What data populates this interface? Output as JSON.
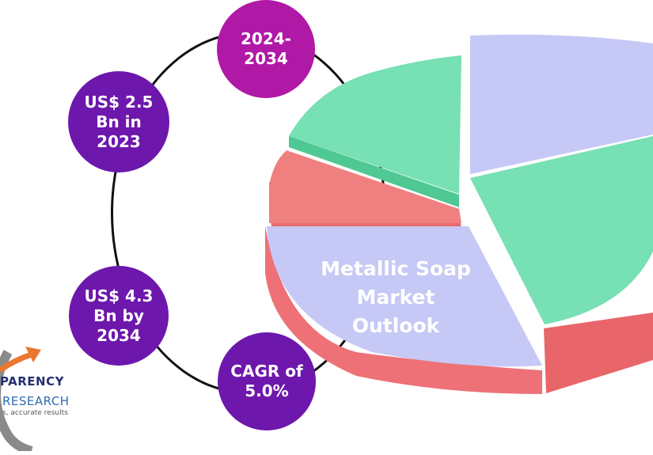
{
  "colors": {
    "period_bubble": "#b018a6",
    "value_bubble": "#6d17ac",
    "ring": "#111111",
    "slice_lavender": "#c6c8f6",
    "slice_green": "#77e0b4",
    "slice_red": "#f07f80",
    "logo_navy": "#24306e",
    "logo_blue": "#2e6bb2",
    "logo_orange": "#e9782e"
  },
  "bubbles": {
    "period": "2024-\n2034",
    "value_2023": "US$ 2.5\nBn in\n2023",
    "value_2034": "US$ 4.3\nBn by\n2034",
    "cagr": "CAGR of\n5.0%"
  },
  "chart": {
    "title": "Metallic Soap\nMarket\nOutlook"
  },
  "chart_data": {
    "type": "pie",
    "style": "3d exploded illustration",
    "slices": [
      {
        "color": "lavender",
        "share": 0.18
      },
      {
        "color": "green",
        "share": 0.18
      },
      {
        "color": "lavender",
        "share": 0.36
      },
      {
        "color": "red",
        "share": 0.08
      },
      {
        "color": "green",
        "share": 0.2
      }
    ]
  },
  "logo": {
    "line1": "PARENCY",
    "line2": "RESEARCH",
    "line3": "s, accurate results",
    "icon": "growth-arrow-logo-icon"
  }
}
